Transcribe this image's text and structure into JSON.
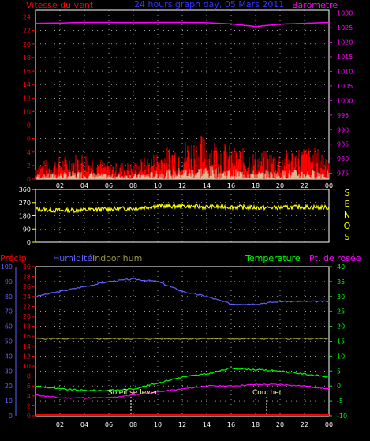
{
  "header": {
    "wind_label": "Vitesse du vent",
    "title": "24 hours graph day, 05 Mars 2011",
    "baro_label": "Barometre"
  },
  "colors": {
    "wind": "#ff0000",
    "wind_gust": "#00ff00",
    "wind_dir": "#ffff00",
    "barometer": "#ff00ff",
    "humidity": "#6060ff",
    "indoor_hum": "#999944",
    "temperature": "#00ff00",
    "dew_point": "#ff00ff",
    "precip": "#ff0000",
    "title": "#3333ff",
    "grid": "#ffffff"
  },
  "x_ticks": [
    "02",
    "04",
    "06",
    "08",
    "10",
    "12",
    "14",
    "16",
    "18",
    "20",
    "22",
    "00"
  ],
  "wind_dir_letters": [
    "S",
    "E",
    "N",
    "O",
    "S"
  ],
  "bottom_labels": {
    "precip": "Précip.",
    "humidity": "Humidité",
    "indoor_hum": "Indoor hum",
    "temperature": "Temperature",
    "dew_point": "Pt. de rosée",
    "sunrise": "Soleil se lever",
    "sunset": "Coucher"
  },
  "chart_data": [
    {
      "type": "line",
      "title": "24 hours graph day, 05 Mars 2011",
      "x": [
        "00",
        "02",
        "04",
        "06",
        "08",
        "10",
        "12",
        "14",
        "16",
        "18",
        "20",
        "22",
        "00"
      ],
      "y_left": {
        "label": "Vitesse du vent",
        "ticks": [
          0,
          2,
          4,
          6,
          8,
          10,
          12,
          14,
          16,
          18,
          20,
          22,
          24
        ],
        "range": [
          0,
          25
        ]
      },
      "y_right": {
        "label": "Barometre",
        "ticks": [
          975,
          980,
          985,
          990,
          995,
          1000,
          1005,
          1010,
          1015,
          1020,
          1025,
          1030
        ],
        "range": [
          973,
          1031
        ]
      },
      "series": [
        {
          "name": "Vitesse du vent",
          "axis": "left",
          "values": [
            1.5,
            2.0,
            2.5,
            1.5,
            1.5,
            2.5,
            3.5,
            4.0,
            3.0,
            2.5,
            2.5,
            3.0,
            2.5
          ]
        },
        {
          "name": "Barometre",
          "axis": "right",
          "values": [
            1026.5,
            1026.6,
            1026.8,
            1026.8,
            1026.7,
            1026.8,
            1026.8,
            1026.7,
            1026.3,
            1025.4,
            1026.2,
            1026.5,
            1026.8
          ]
        }
      ],
      "grid": true
    },
    {
      "type": "line",
      "x": [
        "00",
        "02",
        "04",
        "06",
        "08",
        "10",
        "12",
        "14",
        "16",
        "18",
        "20",
        "22",
        "00"
      ],
      "y_left": {
        "ticks": [
          0,
          90,
          180,
          270,
          360
        ],
        "range": [
          0,
          360
        ]
      },
      "y_right_labels": [
        "S",
        "E",
        "N",
        "O",
        "S"
      ],
      "series": [
        {
          "axis": "left",
          "values": [
            225,
            215,
            220,
            225,
            230,
            245,
            245,
            240,
            240,
            235,
            235,
            240,
            235
          ]
        }
      ],
      "grid": true
    },
    {
      "type": "line",
      "x": [
        "00",
        "02",
        "04",
        "06",
        "08",
        "10",
        "12",
        "14",
        "16",
        "18",
        "20",
        "22",
        "00"
      ],
      "y_axes": {
        "precip": {
          "label": "Précip.",
          "ticks": [
            0,
            10,
            20,
            30,
            40,
            50,
            60,
            70,
            80,
            90,
            100
          ]
        },
        "humidity": {
          "label": "Humidité",
          "ticks": [
            0,
            2,
            4,
            6,
            8,
            10,
            12,
            14,
            16,
            18,
            20,
            22,
            24,
            26,
            28,
            30
          ],
          "range": [
            0,
            30
          ]
        },
        "temperature": {
          "label": "Temperature",
          "ticks": [
            -10,
            -5,
            0,
            5,
            10,
            15,
            20,
            25,
            30,
            35,
            40
          ],
          "range": [
            -10,
            40
          ]
        }
      },
      "series": [
        {
          "name": "Humidité",
          "axis": "humidity",
          "values": [
            24,
            25,
            26,
            27,
            27.5,
            27,
            25,
            24,
            22.5,
            22.5,
            23,
            23,
            23
          ]
        },
        {
          "name": "Indoor hum",
          "axis": "humidity",
          "values": [
            15.5,
            15.5,
            15.5,
            15.5,
            15.5,
            15.5,
            15.5,
            15.5,
            15.5,
            15.5,
            15.5,
            15.5,
            15.5
          ]
        },
        {
          "name": "Temperature",
          "axis": "temperature",
          "values": [
            0,
            -1,
            -1.5,
            -1.5,
            -1,
            1,
            3,
            4,
            6,
            5.5,
            5,
            4,
            3
          ]
        },
        {
          "name": "Pt. de rosée",
          "axis": "temperature",
          "values": [
            -3,
            -4,
            -4,
            -4,
            -3,
            -2,
            -1,
            0,
            0,
            0.5,
            0.5,
            0,
            -1
          ]
        },
        {
          "name": "Précip.",
          "axis": "precip",
          "values": [
            0,
            0,
            0,
            0,
            0,
            0,
            0,
            0,
            0,
            0,
            0,
            0,
            0
          ]
        }
      ],
      "annotations": [
        {
          "text": "Soleil se lever",
          "x": "07:55"
        },
        {
          "text": "Coucher",
          "x": "19:00"
        }
      ],
      "grid": true
    }
  ]
}
